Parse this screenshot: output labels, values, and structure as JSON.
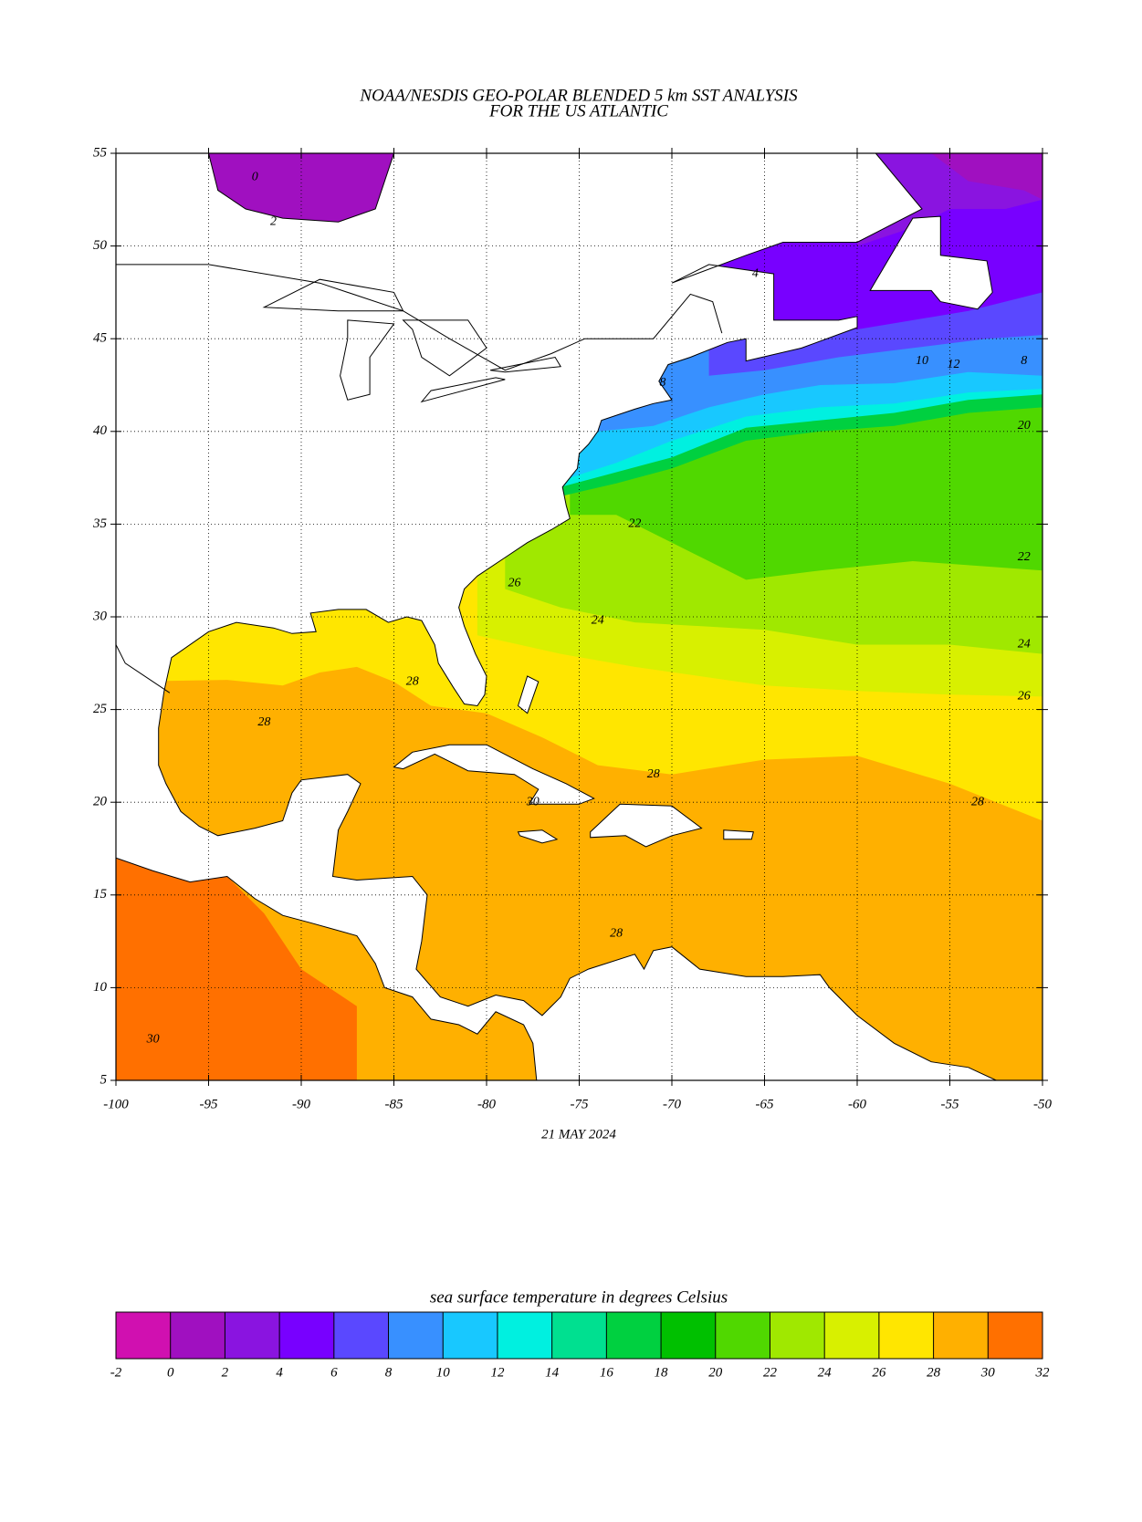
{
  "title": [
    "NOAA/NESDIS GEO-POLAR BLENDED 5 km SST ANALYSIS",
    "FOR THE US ATLANTIC"
  ],
  "map": {
    "lon_range": [
      -100,
      -50
    ],
    "lat_range": [
      5,
      55
    ],
    "xticks": [
      -100,
      -95,
      -90,
      -85,
      -80,
      -75,
      -70,
      -65,
      -60,
      -55,
      -50
    ],
    "yticks": [
      5,
      10,
      15,
      20,
      25,
      30,
      35,
      40,
      45,
      50,
      55
    ],
    "grid": true,
    "contour_labels": [
      0,
      2,
      4,
      8,
      8,
      10,
      12,
      20,
      22,
      22,
      24,
      24,
      26,
      26,
      28,
      28,
      28,
      28,
      28,
      30,
      30
    ]
  },
  "date": "21 MAY 2024",
  "colorbar": {
    "title": "sea surface temperature in degrees Celsius",
    "levels": [
      -2,
      0,
      2,
      4,
      6,
      8,
      10,
      12,
      14,
      16,
      18,
      20,
      22,
      24,
      26,
      28,
      30,
      32
    ],
    "colors": [
      "#d010b0",
      "#a010c0",
      "#8a14e0",
      "#7800ff",
      "#5a48ff",
      "#3890ff",
      "#18c8ff",
      "#00f0e0",
      "#00e090",
      "#00d040",
      "#00c000",
      "#50d800",
      "#a0e800",
      "#d8f000",
      "#ffe600",
      "#ffb000",
      "#ff7000"
    ]
  }
}
